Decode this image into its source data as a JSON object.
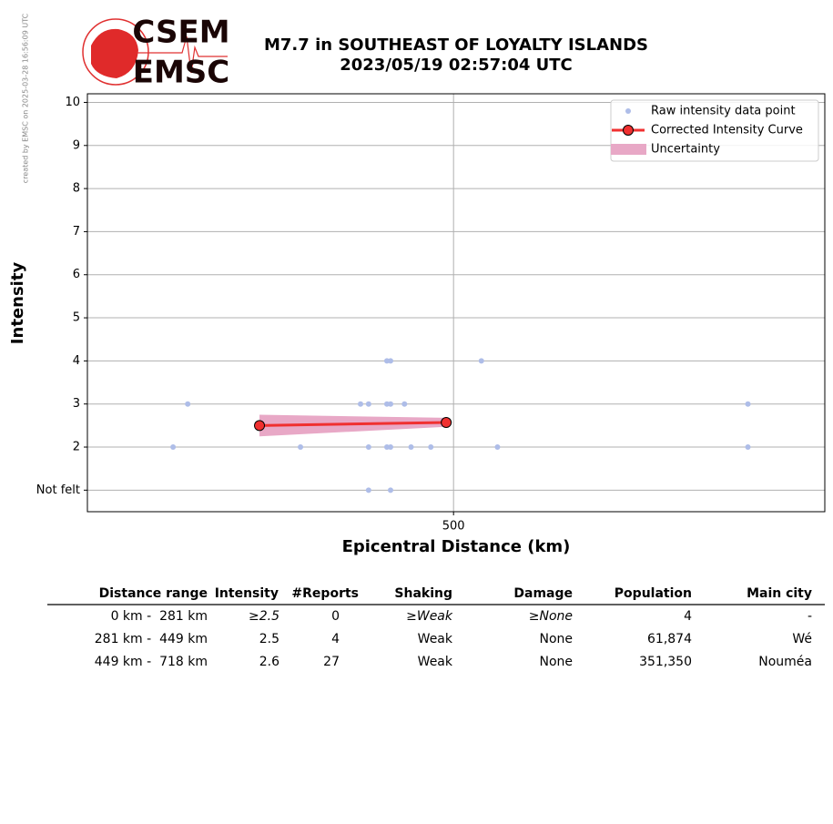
{
  "credit": "created by EMSC on 2025-03-28 16:56:09 UTC",
  "logo": [
    "CSEM",
    "EMSC"
  ],
  "chart_data": {
    "type": "scatter",
    "title": [
      "M7.7 in SOUTHEAST OF LOYALTY ISLANDS",
      "2023/05/19 02:57:04 UTC"
    ],
    "x_label": "Epicentral Distance (km)",
    "y_label": "Intensity",
    "xlim": [
      0,
      1007
    ],
    "ylim": [
      0.5,
      10.2
    ],
    "xticks": [
      500
    ],
    "yticks": [
      {
        "value": 1,
        "label": "Not felt"
      },
      2,
      3,
      4,
      5,
      6,
      7,
      8,
      9,
      10
    ],
    "grid": true,
    "legend": "upper right",
    "series": [
      {
        "name": "Raw intensity data point",
        "type": "scatter",
        "color": "#aebde8",
        "x": [
          117,
          137,
          291,
          373,
          384,
          384,
          384,
          409,
          414,
          409,
          414,
          414,
          409,
          414,
          433,
          442,
          469,
          538,
          560,
          902,
          902
        ],
        "values": [
          2,
          3,
          2,
          3,
          3,
          2,
          1,
          4,
          4,
          3,
          3,
          2,
          2,
          1,
          3,
          2,
          2,
          4,
          2,
          3,
          2
        ]
      },
      {
        "name": "Corrected Intensity Curve",
        "type": "line",
        "color": "#f03030",
        "x": [
          235,
          490
        ],
        "values": [
          2.5,
          2.57
        ]
      },
      {
        "name": "Uncertainty",
        "type": "band",
        "color": "#e8a8c6",
        "x": [
          235,
          490
        ],
        "lower": [
          2.25,
          2.47
        ],
        "upper": [
          2.75,
          2.68
        ]
      }
    ]
  },
  "table": {
    "columns": [
      "Distance range",
      "Intensity",
      "#Reports",
      "Shaking",
      "Damage",
      "Population",
      "Main city"
    ],
    "rows": [
      [
        "0 km -  281 km",
        "≥2.5",
        "0",
        "≥Weak",
        "≥None",
        "4",
        "-"
      ],
      [
        "281 km -  449 km",
        "2.5",
        "4",
        "Weak",
        "None",
        "61,874",
        "Wé"
      ],
      [
        "449 km -  718 km",
        "2.6",
        "27",
        "Weak",
        "None",
        "351,350",
        "Nouméa"
      ]
    ]
  }
}
